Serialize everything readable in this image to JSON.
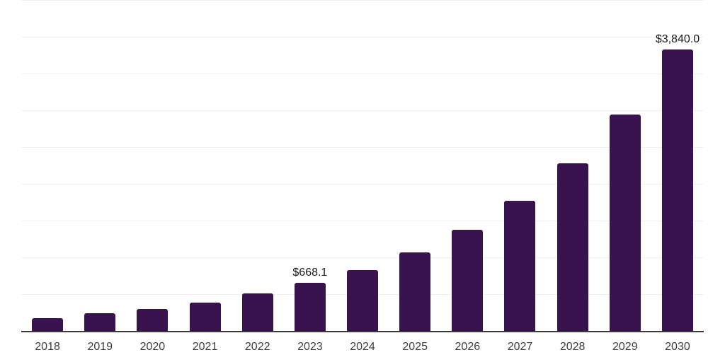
{
  "chart_data": {
    "type": "bar",
    "title": "",
    "xlabel": "",
    "ylabel": "",
    "categories": [
      "2018",
      "2019",
      "2020",
      "2021",
      "2022",
      "2023",
      "2024",
      "2025",
      "2026",
      "2027",
      "2028",
      "2029",
      "2030"
    ],
    "values": [
      185,
      250,
      310,
      395,
      520,
      668.1,
      840,
      1080,
      1385,
      1780,
      2290,
      2955,
      3840
    ],
    "data_labels": [
      "",
      "",
      "",
      "",
      "",
      "$668.1",
      "",
      "",
      "",
      "",
      "",
      "",
      "$3,840.0"
    ],
    "ylim": [
      0,
      4500
    ],
    "gridline_interval": 500,
    "grid": true,
    "legend": false,
    "y_axis_labels_visible": false,
    "colors": {
      "bar": "#38134e",
      "gridline": "#f0f0f0",
      "axis_line": "#3a3a3a",
      "tick_label": "#3d3d3d",
      "data_label": "#1a1a1a",
      "background": "#ffffff"
    }
  }
}
